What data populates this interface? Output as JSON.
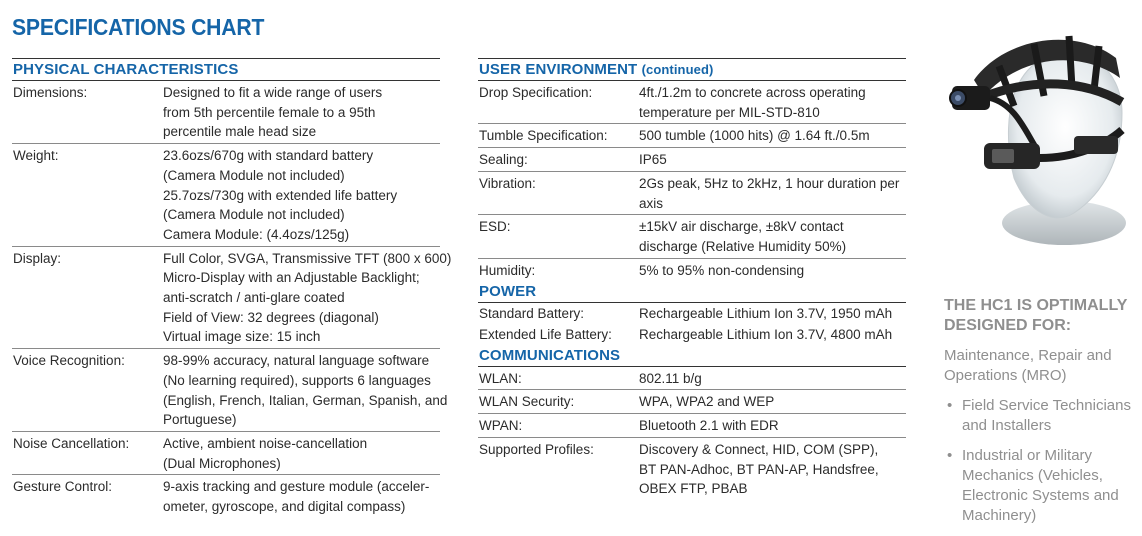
{
  "title": "SPECIFICATIONS CHART",
  "physical": {
    "heading": "PHYSICAL CHARACTERISTICS",
    "rows": [
      {
        "key": "Dimensions:",
        "lines": [
          "Designed to fit a wide range of users",
          "from 5th percentile female to a 95th",
          "percentile male head size"
        ]
      },
      {
        "key": "Weight:",
        "lines": [
          "23.6ozs/670g with standard battery",
          "(Camera Module not included)",
          "25.7ozs/730g with extended life battery",
          "(Camera Module not included)",
          "Camera Module: (4.4ozs/125g)"
        ]
      },
      {
        "key": "Display:",
        "lines": [
          "Full Color, SVGA, Transmissive TFT (800 x 600)",
          "Micro-Display with an Adjustable Backlight;",
          "anti-scratch / anti-glare coated",
          "Field of View: 32 degrees (diagonal)",
          "Virtual image size: 15 inch"
        ]
      },
      {
        "key": "Voice Recognition:",
        "lines": [
          "98-99% accuracy, natural language software",
          "(No learning required), supports 6 languages",
          "(English, French, Italian, German, Spanish, and",
          "Portuguese)"
        ]
      },
      {
        "key": "Noise Cancellation:",
        "lines": [
          "Active, ambient noise-cancellation",
          "(Dual Microphones)"
        ]
      },
      {
        "key": "Gesture Control:",
        "lines": [
          "9-axis tracking and gesture module (acceler-",
          "ometer, gyroscope, and digital compass)"
        ]
      }
    ]
  },
  "user_env": {
    "heading": "USER ENVIRONMENT",
    "heading_suffix": "(continued)",
    "rows": [
      {
        "key": "Drop Specification:",
        "lines": [
          "4ft./1.2m to concrete across operating",
          "temperature per MIL-STD-810"
        ]
      },
      {
        "key": "Tumble Specification:",
        "lines": [
          "500 tumble (1000 hits) @ 1.64 ft./0.5m"
        ]
      },
      {
        "key": "Sealing:",
        "lines": [
          "IP65"
        ]
      },
      {
        "key": "Vibration:",
        "lines": [
          "2Gs peak, 5Hz to 2kHz, 1 hour duration per",
          "axis"
        ]
      },
      {
        "key": "ESD:",
        "lines": [
          "±15kV air discharge, ±8kV contact",
          "discharge (Relative Humidity 50%)"
        ]
      },
      {
        "key": "Humidity:",
        "lines": [
          "5% to 95% non-condensing"
        ]
      }
    ]
  },
  "power": {
    "heading": "POWER",
    "rows": [
      {
        "key": "Standard Battery:",
        "lines": [
          "Rechargeable Lithium Ion 3.7V, 1950 mAh"
        ]
      },
      {
        "key": "Extended Life Battery:",
        "lines": [
          "Rechargeable Lithium Ion 3.7V, 4800 mAh"
        ]
      }
    ]
  },
  "comms": {
    "heading": "COMMUNICATIONS",
    "rows": [
      {
        "key": "WLAN:",
        "lines": [
          "802.11 b/g"
        ]
      },
      {
        "key": "WLAN Security:",
        "lines": [
          "WPA, WPA2 and WEP"
        ]
      },
      {
        "key": "WPAN:",
        "lines": [
          "Bluetooth 2.1 with EDR"
        ]
      },
      {
        "key": "Supported Profiles:",
        "lines": [
          "Discovery & Connect, HID, COM (SPP),",
          "BT PAN-Adhoc, BT PAN-AP, Handsfree,",
          "OBEX FTP, PBAB"
        ]
      }
    ]
  },
  "sidebar": {
    "image_icon": "headset-helmet-photo",
    "title": "THE HC1 IS OPTIMALLY DESIGNED FOR:",
    "intro": "Maintenance, Repair and Operations (MRO)",
    "items": [
      "Field Service Technicians and Installers",
      "Industrial or Military Mechanics (Vehicles, Electronic Systems and Machinery)"
    ]
  },
  "colors": {
    "accent": "#1565a8",
    "sidebar_text": "#8f8f8f",
    "rule": "#333333"
  }
}
